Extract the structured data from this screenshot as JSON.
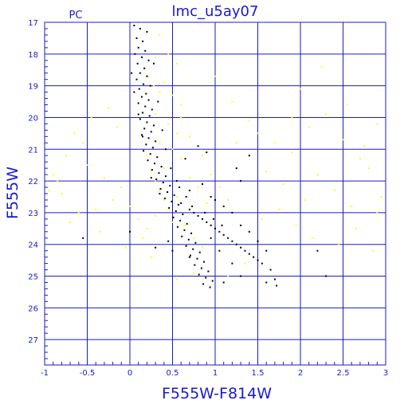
{
  "title": "lmc_u5ay07",
  "corner_label": "PC",
  "chart_data": {
    "type": "scatter",
    "title": "lmc_u5ay07",
    "xlabel": "F555W-F814W",
    "ylabel": "F555W",
    "xlim": [
      -1,
      3
    ],
    "ylim": [
      27.8,
      17
    ],
    "y_inverted": true,
    "grid": true,
    "x_ticks": [
      -1,
      -0.5,
      0,
      0.5,
      1,
      1.5,
      2,
      2.5,
      3
    ],
    "x_tick_labels": [
      "-1",
      "-0.5",
      "0",
      "0.5",
      "1",
      "1.5",
      "2",
      "2.5",
      "3"
    ],
    "y_ticks": [
      17,
      18,
      19,
      20,
      21,
      22,
      23,
      24,
      25,
      26,
      27
    ],
    "y_tick_labels": [
      "17",
      "18",
      "19",
      "20",
      "21",
      "22",
      "23",
      "24",
      "25",
      "26",
      "27"
    ],
    "colors": {
      "axes": "#1a1acd",
      "black_points": "#000000",
      "yellow_points": "#ffff00"
    },
    "series": [
      {
        "color": "#000000",
        "points": [
          [
            0.05,
            17.1
          ],
          [
            0.12,
            17.2
          ],
          [
            0.2,
            17.3
          ],
          [
            0.08,
            17.5
          ],
          [
            0.15,
            17.6
          ],
          [
            0.1,
            17.8
          ],
          [
            0.18,
            17.9
          ],
          [
            0.06,
            18.0
          ],
          [
            0.14,
            18.1
          ],
          [
            0.22,
            18.2
          ],
          [
            0.09,
            18.3
          ],
          [
            0.17,
            18.45
          ],
          [
            0.12,
            18.6
          ],
          [
            0.2,
            18.7
          ],
          [
            0.08,
            18.8
          ],
          [
            0.16,
            18.95
          ],
          [
            0.24,
            19.0
          ],
          [
            0.11,
            19.1
          ],
          [
            0.19,
            19.25
          ],
          [
            0.14,
            19.35
          ],
          [
            0.22,
            19.45
          ],
          [
            0.1,
            19.55
          ],
          [
            0.18,
            19.65
          ],
          [
            0.26,
            19.75
          ],
          [
            0.15,
            19.85
          ],
          [
            0.23,
            19.95
          ],
          [
            0.12,
            20.05
          ],
          [
            0.2,
            20.15
          ],
          [
            0.28,
            20.25
          ],
          [
            0.17,
            20.35
          ],
          [
            0.25,
            20.45
          ],
          [
            0.14,
            20.55
          ],
          [
            0.22,
            20.65
          ],
          [
            0.3,
            20.75
          ],
          [
            0.19,
            20.85
          ],
          [
            0.27,
            20.95
          ],
          [
            0.16,
            21.05
          ],
          [
            0.24,
            21.15
          ],
          [
            0.32,
            21.25
          ],
          [
            0.21,
            21.35
          ],
          [
            0.29,
            21.45
          ],
          [
            0.37,
            21.55
          ],
          [
            0.26,
            21.65
          ],
          [
            0.34,
            21.75
          ],
          [
            0.42,
            21.85
          ],
          [
            0.31,
            21.95
          ],
          [
            0.39,
            22.05
          ],
          [
            0.47,
            22.15
          ],
          [
            0.36,
            22.25
          ],
          [
            0.44,
            22.35
          ],
          [
            0.52,
            22.45
          ],
          [
            0.41,
            22.55
          ],
          [
            0.49,
            22.65
          ],
          [
            0.57,
            22.75
          ],
          [
            0.46,
            22.85
          ],
          [
            0.54,
            22.95
          ],
          [
            0.62,
            23.05
          ],
          [
            0.51,
            23.15
          ],
          [
            0.59,
            23.25
          ],
          [
            0.67,
            23.35
          ],
          [
            0.56,
            23.45
          ],
          [
            0.64,
            23.55
          ],
          [
            0.72,
            23.65
          ],
          [
            0.61,
            23.75
          ],
          [
            0.69,
            23.85
          ],
          [
            0.77,
            23.95
          ],
          [
            0.66,
            24.05
          ],
          [
            0.74,
            24.15
          ],
          [
            0.82,
            24.25
          ],
          [
            0.71,
            24.35
          ],
          [
            0.79,
            24.45
          ],
          [
            0.87,
            24.55
          ],
          [
            0.76,
            24.65
          ],
          [
            0.84,
            24.75
          ],
          [
            0.92,
            24.85
          ],
          [
            0.81,
            24.95
          ],
          [
            0.89,
            25.05
          ],
          [
            0.97,
            25.15
          ],
          [
            0.86,
            25.25
          ],
          [
            0.94,
            25.35
          ],
          [
            0.6,
            22.7
          ],
          [
            0.7,
            22.9
          ],
          [
            0.8,
            23.1
          ],
          [
            0.9,
            23.3
          ],
          [
            1.0,
            23.5
          ],
          [
            1.1,
            23.7
          ],
          [
            1.2,
            23.9
          ],
          [
            1.3,
            24.1
          ],
          [
            1.4,
            24.3
          ],
          [
            1.5,
            24.5
          ],
          [
            0.75,
            23.0
          ],
          [
            0.85,
            23.2
          ],
          [
            0.95,
            23.4
          ],
          [
            1.05,
            23.6
          ],
          [
            1.15,
            23.8
          ],
          [
            1.25,
            24.0
          ],
          [
            1.35,
            24.2
          ],
          [
            1.45,
            24.4
          ],
          [
            1.55,
            24.6
          ],
          [
            1.65,
            24.8
          ],
          [
            1.7,
            25.1
          ],
          [
            1.72,
            25.3
          ],
          [
            1.6,
            25.2
          ],
          [
            1.3,
            25.0
          ],
          [
            1.1,
            25.2
          ],
          [
            0.95,
            23.8
          ],
          [
            1.05,
            24.2
          ],
          [
            1.2,
            24.6
          ],
          [
            0.7,
            24.4
          ],
          [
            0.5,
            24.2
          ],
          [
            0.3,
            24.1
          ],
          [
            0.45,
            23.9
          ],
          [
            -0.55,
            23.8
          ],
          [
            0.0,
            23.6
          ],
          [
            2.2,
            24.2
          ],
          [
            2.3,
            25.0
          ],
          [
            1.3,
            22.0
          ],
          [
            1.25,
            21.6
          ],
          [
            1.4,
            21.2
          ],
          [
            0.9,
            21.1
          ],
          [
            0.8,
            20.9
          ],
          [
            0.65,
            21.3
          ],
          [
            0.55,
            22.0
          ],
          [
            0.7,
            22.3
          ],
          [
            1.0,
            22.6
          ],
          [
            1.1,
            22.8
          ],
          [
            0.95,
            22.5
          ],
          [
            0.85,
            22.1
          ],
          [
            1.2,
            23.0
          ],
          [
            1.3,
            23.4
          ],
          [
            1.4,
            23.6
          ],
          [
            1.5,
            23.9
          ],
          [
            1.6,
            24.2
          ],
          [
            0.35,
            22.4
          ],
          [
            0.25,
            21.9
          ],
          [
            0.15,
            20.6
          ],
          [
            0.1,
            19.9
          ],
          [
            0.05,
            19.2
          ],
          [
            0.02,
            18.6
          ],
          [
            0.28,
            18.3
          ],
          [
            0.33,
            19.5
          ],
          [
            0.38,
            20.4
          ],
          [
            0.42,
            21.0
          ],
          [
            0.48,
            21.6
          ],
          [
            0.58,
            22.2
          ],
          [
            0.66,
            22.5
          ],
          [
            0.73,
            22.8
          ],
          [
            0.88,
            23.0
          ],
          [
            0.98,
            23.2
          ],
          [
            1.08,
            23.4
          ]
        ]
      },
      {
        "color": "#ffff00",
        "points": [
          [
            0.1,
            17.0
          ],
          [
            0.35,
            17.4
          ],
          [
            0.45,
            18.0
          ],
          [
            0.55,
            18.3
          ],
          [
            0.4,
            18.9
          ],
          [
            0.5,
            19.3
          ],
          [
            0.6,
            19.6
          ],
          [
            0.3,
            19.9
          ],
          [
            0.45,
            20.2
          ],
          [
            0.55,
            20.5
          ],
          [
            0.35,
            20.8
          ],
          [
            0.5,
            21.0
          ],
          [
            0.6,
            21.3
          ],
          [
            0.4,
            21.6
          ],
          [
            0.7,
            21.9
          ],
          [
            0.8,
            22.2
          ],
          [
            0.55,
            22.5
          ],
          [
            0.9,
            22.7
          ],
          [
            0.45,
            22.9
          ],
          [
            0.3,
            23.1
          ],
          [
            -0.2,
            22.6
          ],
          [
            -0.4,
            22.9
          ],
          [
            -0.6,
            23.0
          ],
          [
            -0.8,
            22.4
          ],
          [
            -0.9,
            21.8
          ],
          [
            -0.5,
            21.5
          ],
          [
            -0.3,
            21.9
          ],
          [
            -0.1,
            22.2
          ],
          [
            0.0,
            22.8
          ],
          [
            0.1,
            23.2
          ],
          [
            0.2,
            23.5
          ],
          [
            0.15,
            23.8
          ],
          [
            -0.05,
            24.1
          ],
          [
            -0.35,
            23.6
          ],
          [
            -0.7,
            23.3
          ],
          [
            -0.85,
            22.0
          ],
          [
            -0.65,
            20.5
          ],
          [
            -0.45,
            20.0
          ],
          [
            -0.25,
            19.7
          ],
          [
            -0.15,
            20.3
          ],
          [
            1.5,
            20.5
          ],
          [
            1.7,
            20.8
          ],
          [
            1.9,
            21.1
          ],
          [
            2.1,
            20.3
          ],
          [
            2.3,
            19.9
          ],
          [
            2.5,
            20.7
          ],
          [
            2.7,
            21.3
          ],
          [
            2.9,
            20.2
          ],
          [
            2.2,
            21.8
          ],
          [
            2.4,
            22.3
          ],
          [
            2.6,
            22.8
          ],
          [
            2.8,
            21.6
          ],
          [
            2.95,
            22.5
          ],
          [
            1.8,
            22.1
          ],
          [
            1.6,
            21.7
          ],
          [
            1.4,
            20.1
          ],
          [
            1.2,
            19.5
          ],
          [
            1.0,
            18.7
          ],
          [
            2.0,
            19.1
          ],
          [
            2.25,
            18.4
          ],
          [
            1.75,
            22.9
          ],
          [
            1.95,
            23.4
          ],
          [
            2.15,
            23.8
          ],
          [
            2.45,
            24.0
          ],
          [
            2.65,
            23.5
          ],
          [
            2.85,
            24.2
          ],
          [
            1.35,
            24.6
          ],
          [
            1.15,
            25.0
          ],
          [
            0.75,
            24.9
          ],
          [
            0.55,
            25.1
          ],
          [
            0.25,
            24.4
          ],
          [
            0.6,
            20.0
          ],
          [
            0.7,
            20.6
          ],
          [
            0.85,
            21.2
          ],
          [
            0.95,
            21.8
          ],
          [
            1.05,
            22.2
          ],
          [
            1.15,
            22.6
          ],
          [
            0.65,
            23.4
          ],
          [
            0.75,
            23.8
          ],
          [
            0.85,
            24.1
          ],
          [
            0.2,
            21.2
          ],
          [
            0.25,
            21.7
          ],
          [
            0.3,
            22.0
          ],
          [
            0.35,
            22.3
          ],
          [
            0.4,
            22.6
          ],
          [
            0.5,
            23.3
          ],
          [
            0.35,
            19.2
          ],
          [
            0.28,
            19.0
          ],
          [
            0.22,
            18.7
          ],
          [
            0.3,
            18.1
          ],
          [
            1.9,
            20.0
          ],
          [
            2.05,
            22.6
          ],
          [
            2.55,
            19.6
          ],
          [
            2.75,
            20.9
          ],
          [
            1.55,
            23.2
          ],
          [
            1.25,
            20.8
          ],
          [
            -0.55,
            20.8
          ],
          [
            -0.75,
            21.2
          ],
          [
            -0.95,
            22.3
          ],
          [
            2.9,
            23.0
          ]
        ]
      }
    ]
  }
}
